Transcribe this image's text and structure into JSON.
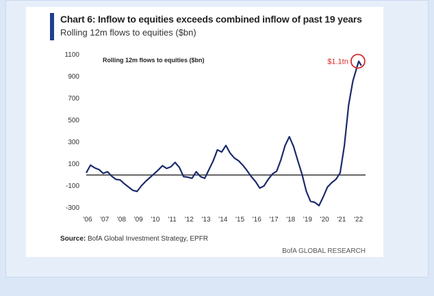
{
  "header": {
    "title": "Chart 6: Inflow to equities exceeds combined inflow of past 19 years",
    "subtitle": "Rolling 12m flows to equities ($bn)"
  },
  "footer": {
    "source_label": "Source:",
    "source_text": "BofA Global Investment Strategy, EPFR",
    "brand": "BofA GLOBAL RESEARCH"
  },
  "colors": {
    "line": "#1b2a6b",
    "accent": "#1f3f8f",
    "annotation": "#d42a2a"
  },
  "chart_data": {
    "type": "line",
    "title": "Rolling 12m flows to equities ($bn)",
    "xlabel": "",
    "ylabel": "",
    "xlim": [
      2006,
      2022.5
    ],
    "ylim": [
      -300,
      1100
    ],
    "yticks": [
      1100,
      900,
      700,
      500,
      300,
      100,
      -100,
      -300
    ],
    "xticks": [
      "'06",
      "'07",
      "'08",
      "'09",
      "'10",
      "'11",
      "'12",
      "'13",
      "'14",
      "'15",
      "'16",
      "'17",
      "'18",
      "'19",
      "'20",
      "'21",
      "'22"
    ],
    "reference_line": 0,
    "annotation": {
      "text": "$1.1tn",
      "x": 2022.05,
      "y": 1040
    },
    "series": [
      {
        "name": "Rolling 12m flows to equities ($bn)",
        "x": [
          2006.0,
          2006.25,
          2006.5,
          2006.75,
          2007.0,
          2007.25,
          2007.5,
          2007.75,
          2008.0,
          2008.25,
          2008.5,
          2008.75,
          2009.0,
          2009.25,
          2009.5,
          2009.75,
          2010.0,
          2010.25,
          2010.5,
          2010.75,
          2011.0,
          2011.25,
          2011.5,
          2011.75,
          2012.0,
          2012.25,
          2012.5,
          2012.75,
          2013.0,
          2013.25,
          2013.5,
          2013.75,
          2014.0,
          2014.25,
          2014.5,
          2014.75,
          2015.0,
          2015.25,
          2015.5,
          2015.75,
          2016.0,
          2016.25,
          2016.5,
          2016.75,
          2017.0,
          2017.25,
          2017.5,
          2017.75,
          2018.0,
          2018.25,
          2018.5,
          2018.75,
          2019.0,
          2019.25,
          2019.5,
          2019.75,
          2020.0,
          2020.25,
          2020.5,
          2020.75,
          2021.0,
          2021.25,
          2021.5,
          2021.75,
          2022.0,
          2022.1,
          2022.25
        ],
        "values": [
          20,
          90,
          65,
          50,
          15,
          30,
          -10,
          -40,
          -45,
          -80,
          -110,
          -140,
          -150,
          -100,
          -60,
          -25,
          10,
          45,
          85,
          60,
          75,
          115,
          70,
          -15,
          -20,
          -30,
          30,
          -15,
          -30,
          50,
          130,
          230,
          210,
          270,
          200,
          155,
          130,
          90,
          40,
          -15,
          -60,
          -120,
          -100,
          -40,
          10,
          35,
          140,
          270,
          350,
          260,
          130,
          5,
          -150,
          -240,
          -250,
          -280,
          -200,
          -110,
          -70,
          -40,
          20,
          270,
          640,
          860,
          990,
          1040,
          1000
        ]
      }
    ]
  }
}
